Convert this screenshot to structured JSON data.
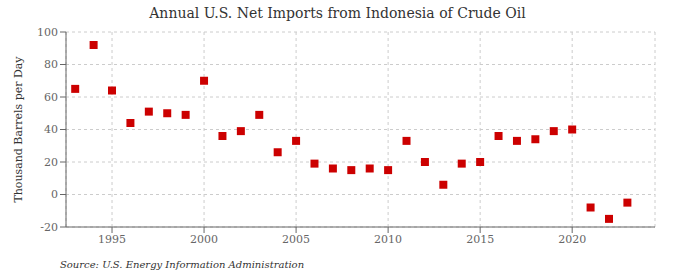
{
  "chart_data": {
    "type": "scatter",
    "title": "Annual U.S. Net Imports from Indonesia of Crude Oil",
    "y_label": "Thousand Barrels per Day",
    "annotations": [
      "Source: U.S. Energy Information Administration"
    ],
    "x": [
      1993,
      1994,
      1995,
      1996,
      1997,
      1998,
      1999,
      2000,
      2001,
      2002,
      2003,
      2004,
      2005,
      2006,
      2007,
      2008,
      2009,
      2010,
      2011,
      2012,
      2013,
      2014,
      2015,
      2016,
      2017,
      2018,
      2019,
      2020,
      2021,
      2022,
      2023
    ],
    "values": [
      65,
      92,
      64,
      44,
      51,
      50,
      49,
      70,
      36,
      39,
      49,
      26,
      33,
      19,
      16,
      15,
      16,
      15,
      33,
      20,
      6,
      19,
      20,
      36,
      33,
      34,
      39,
      40,
      -8,
      -15,
      -5
    ],
    "color": "#cc0000",
    "marker": "square",
    "xlim": [
      1992.5,
      2024.5
    ],
    "xticks": [
      1995,
      2000,
      2005,
      2010,
      2015,
      2020
    ],
    "ylim": [
      -20,
      100
    ],
    "yticks": [
      -20,
      0,
      20,
      40,
      60,
      80,
      100
    ],
    "grid": true
  }
}
